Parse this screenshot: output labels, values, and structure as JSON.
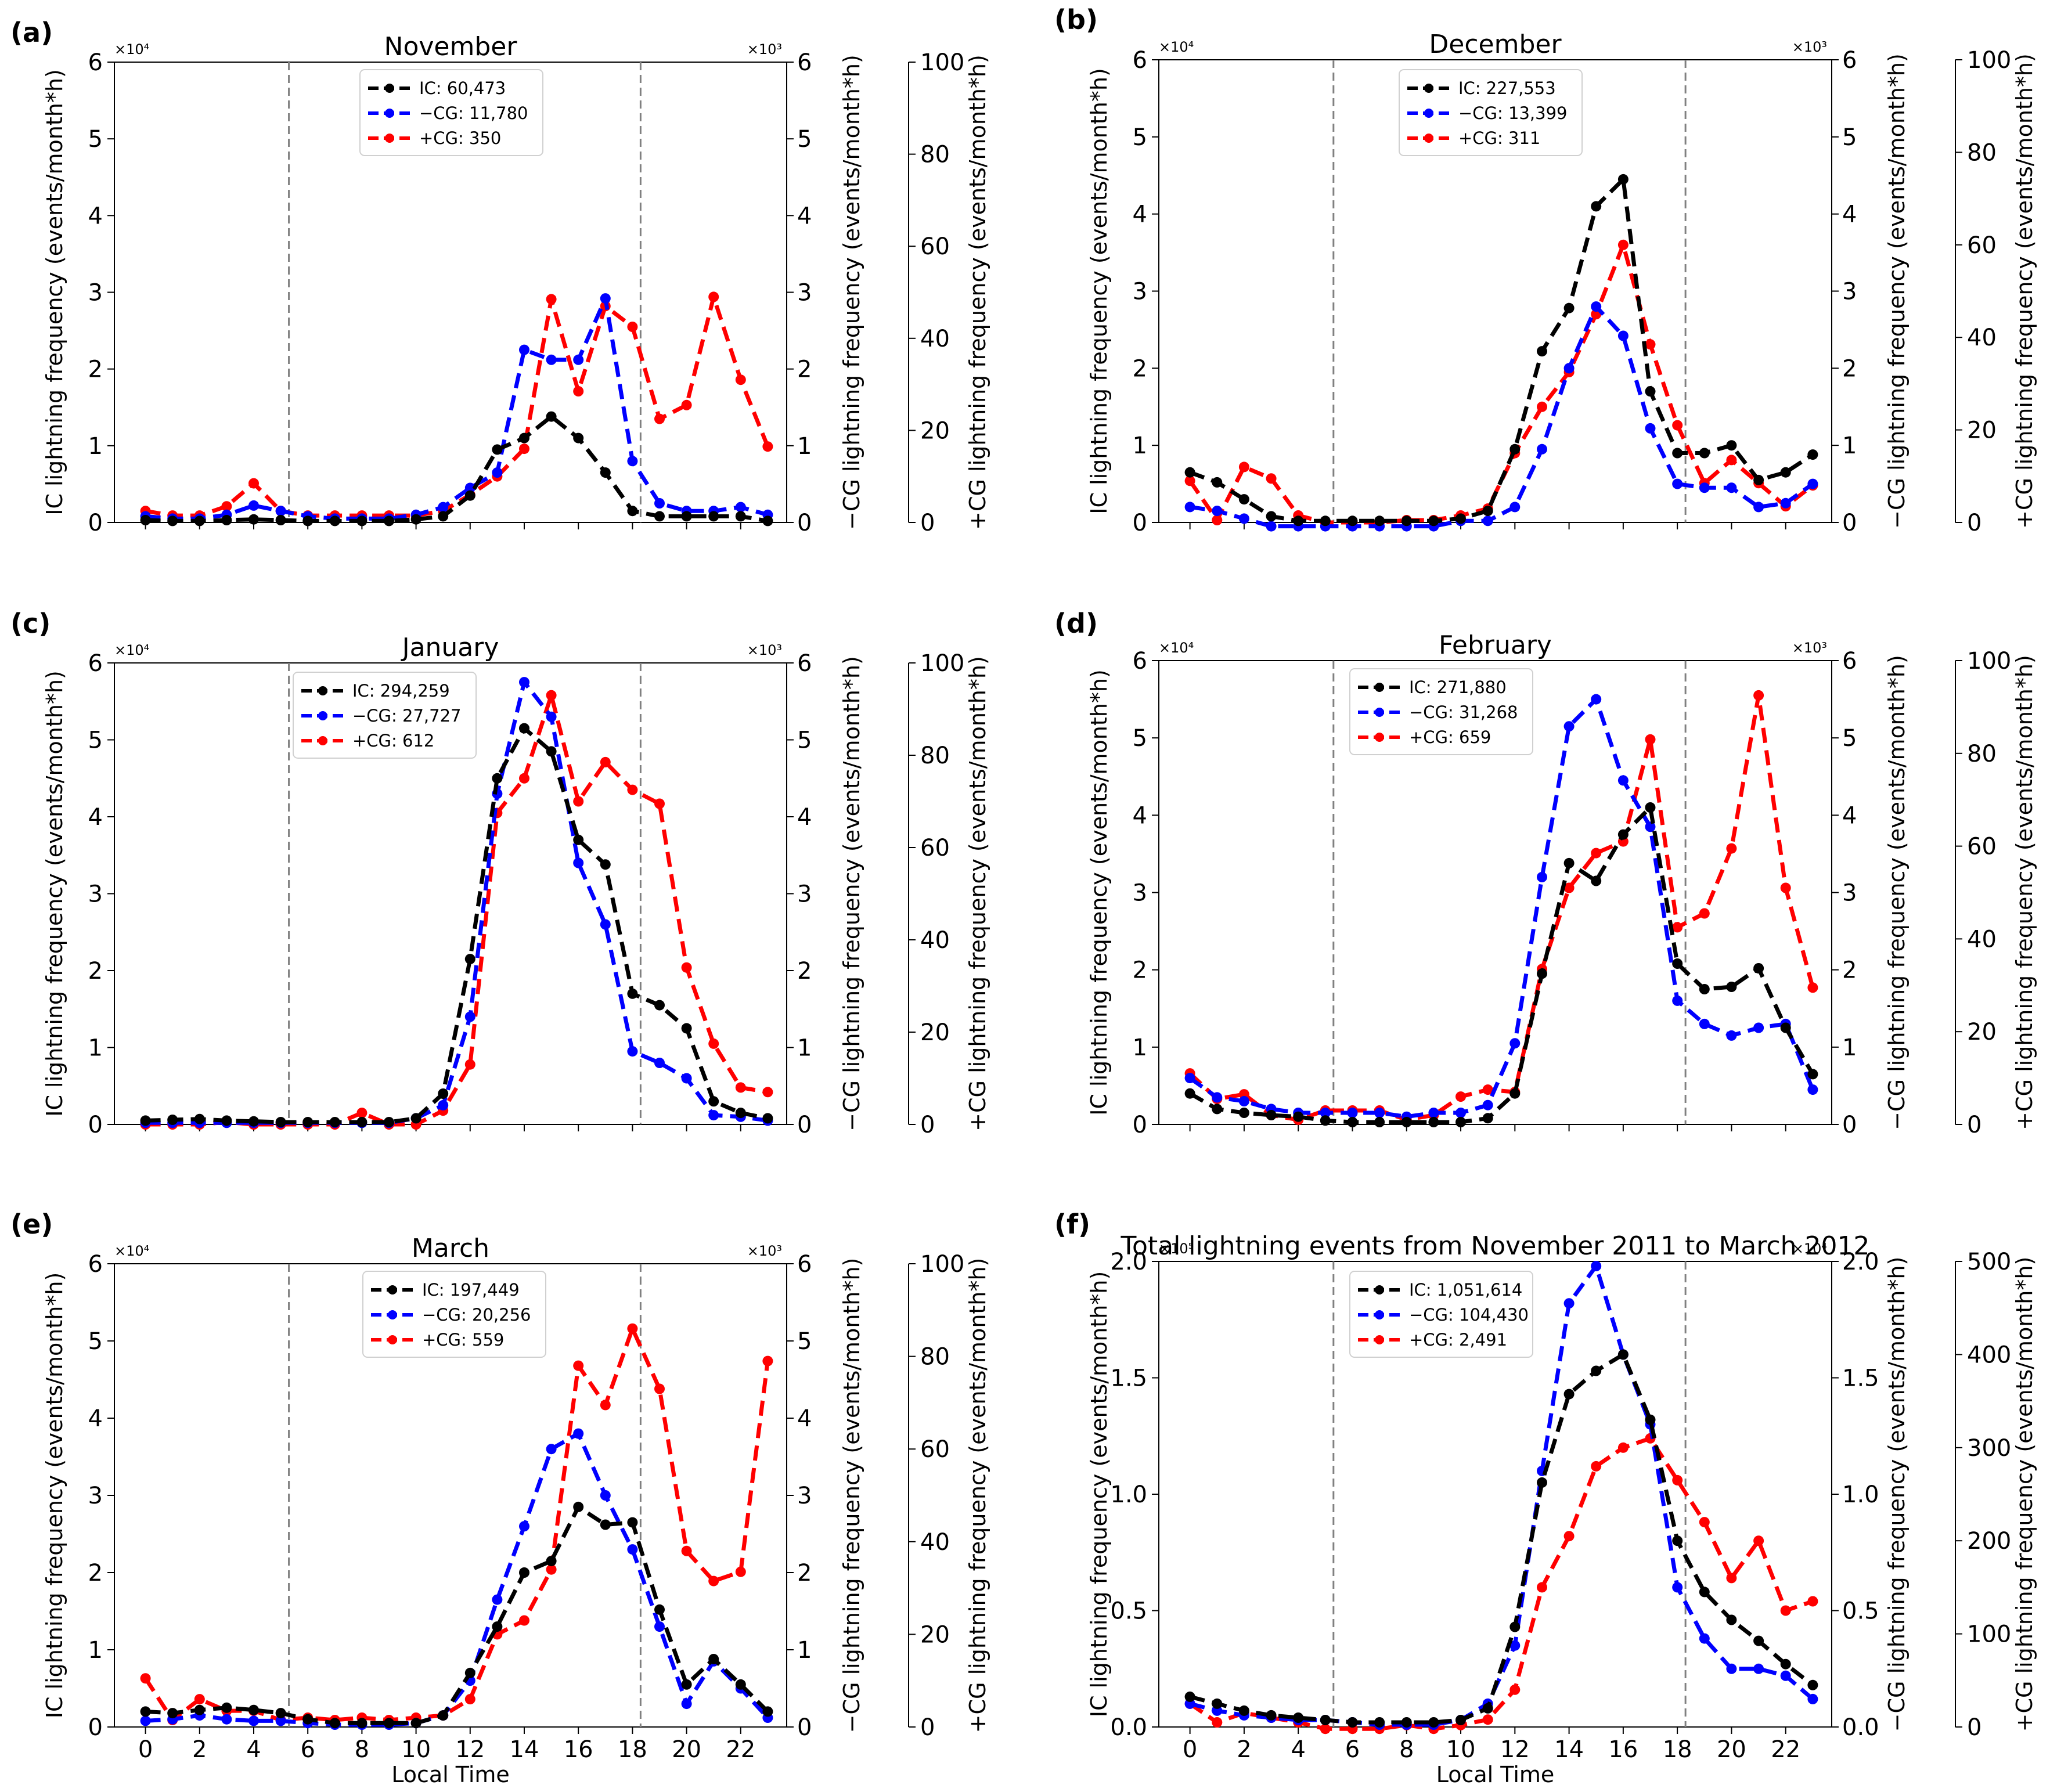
{
  "figure": {
    "x_label": "Local Time",
    "y_label_left": "IC lightning frequency (events/month*h)",
    "y_label_mid": "−CG lightning frequency (events/month*h)",
    "y_label_right": "+CG lightning frequency (events/month*h)",
    "colors": {
      "ic": "#000000",
      "neg_cg": "#0000ff",
      "pos_cg": "#ff0000",
      "vline": "#808080"
    },
    "vertical_lines_hours": [
      5.3,
      18.3
    ]
  },
  "chart_data": [
    {
      "type": "line",
      "panel": "(a)",
      "title": "November",
      "categories": [
        0,
        1,
        2,
        3,
        4,
        5,
        6,
        7,
        8,
        9,
        10,
        11,
        12,
        13,
        14,
        15,
        16,
        17,
        18,
        19,
        20,
        21,
        22,
        23
      ],
      "ylim_left": [
        0,
        6
      ],
      "yticks_left": [
        "0",
        "1",
        "2",
        "3",
        "4",
        "5",
        "6"
      ],
      "exp_left": "×10⁴",
      "ylim_mid": [
        0,
        6
      ],
      "yticks_mid": [
        "0",
        "1",
        "2",
        "3",
        "4",
        "5",
        "6"
      ],
      "exp_mid": "×10³",
      "ylim_right": [
        0,
        100
      ],
      "yticks_right": [
        "0",
        "20",
        "40",
        "60",
        "80",
        "100"
      ],
      "vlines": [
        5.3,
        18.3
      ],
      "series": [
        {
          "name": "IC: 60,473",
          "axis": "left",
          "color": "#000000",
          "values": [
            0.03,
            0.02,
            0.02,
            0.03,
            0.04,
            0.03,
            0.02,
            0.02,
            0.02,
            0.02,
            0.04,
            0.08,
            0.35,
            0.95,
            1.1,
            1.38,
            1.1,
            0.65,
            0.15,
            0.08,
            0.08,
            0.08,
            0.08,
            0.02
          ]
        },
        {
          "name": "−CG: 11,780",
          "axis": "mid",
          "color": "#0000ff",
          "values": [
            0.08,
            0.05,
            0.05,
            0.1,
            0.22,
            0.15,
            0.08,
            0.05,
            0.05,
            0.05,
            0.1,
            0.2,
            0.45,
            0.65,
            2.25,
            2.12,
            2.12,
            2.92,
            0.8,
            0.25,
            0.15,
            0.15,
            0.2,
            0.1
          ]
        },
        {
          "name": "+CG: 350",
          "axis": "right",
          "color": "#ff0000",
          "values": [
            2.5,
            1.5,
            1.5,
            3.5,
            8.5,
            2.5,
            1.5,
            1.5,
            1.5,
            1.5,
            1.5,
            2.5,
            6,
            10,
            16,
            48.5,
            28.5,
            47,
            42.5,
            22.5,
            25.5,
            49,
            31,
            16.5
          ]
        }
      ]
    },
    {
      "type": "line",
      "panel": "(b)",
      "title": "December",
      "categories": [
        0,
        1,
        2,
        3,
        4,
        5,
        6,
        7,
        8,
        9,
        10,
        11,
        12,
        13,
        14,
        15,
        16,
        17,
        18,
        19,
        20,
        21,
        22,
        23
      ],
      "ylim_left": [
        0,
        6
      ],
      "yticks_left": [
        "0",
        "1",
        "2",
        "3",
        "4",
        "5",
        "6"
      ],
      "exp_left": "×10⁴",
      "ylim_mid": [
        0,
        6
      ],
      "yticks_mid": [
        "0",
        "1",
        "2",
        "3",
        "4",
        "5",
        "6"
      ],
      "exp_mid": "×10³",
      "ylim_right": [
        0,
        100
      ],
      "yticks_right": [
        "0",
        "20",
        "40",
        "60",
        "80",
        "100"
      ],
      "vlines": [
        5.3,
        18.3
      ],
      "series": [
        {
          "name": "IC: 227,553",
          "axis": "left",
          "color": "#000000",
          "values": [
            0.65,
            0.52,
            0.3,
            0.08,
            0.02,
            0.02,
            0.02,
            0.02,
            0.02,
            0.02,
            0.05,
            0.15,
            0.95,
            2.22,
            2.78,
            4.1,
            4.45,
            1.7,
            0.9,
            0.9,
            1.0,
            0.55,
            0.65,
            0.88
          ]
        },
        {
          "name": "−CG: 13,399",
          "axis": "mid",
          "color": "#0000ff",
          "values": [
            0.2,
            0.15,
            0.05,
            -0.05,
            -0.05,
            -0.05,
            -0.05,
            -0.05,
            -0.05,
            -0.05,
            0.02,
            0.02,
            0.2,
            0.95,
            2.0,
            2.8,
            2.42,
            1.22,
            0.5,
            0.45,
            0.45,
            0.2,
            0.25,
            0.5
          ]
        },
        {
          "name": "+CG: 311",
          "axis": "right",
          "color": "#ff0000",
          "values": [
            9,
            0.5,
            12,
            9.5,
            1.5,
            0,
            0,
            0,
            0.5,
            0.5,
            1.5,
            3,
            15,
            25,
            32.5,
            45,
            60,
            38.5,
            21,
            8.5,
            13.5,
            8.5,
            3.5,
            8
          ]
        }
      ]
    },
    {
      "type": "line",
      "panel": "(c)",
      "title": "January",
      "categories": [
        0,
        1,
        2,
        3,
        4,
        5,
        6,
        7,
        8,
        9,
        10,
        11,
        12,
        13,
        14,
        15,
        16,
        17,
        18,
        19,
        20,
        21,
        22,
        23
      ],
      "ylim_left": [
        0,
        6
      ],
      "yticks_left": [
        "0",
        "1",
        "2",
        "3",
        "4",
        "5",
        "6"
      ],
      "exp_left": "×10⁴",
      "ylim_mid": [
        0,
        6
      ],
      "yticks_mid": [
        "0",
        "1",
        "2",
        "3",
        "4",
        "5",
        "6"
      ],
      "exp_mid": "×10³",
      "ylim_right": [
        0,
        100
      ],
      "yticks_right": [
        "0",
        "20",
        "40",
        "60",
        "80",
        "100"
      ],
      "vlines": [
        5.3,
        18.3
      ],
      "series": [
        {
          "name": "IC: 294,259",
          "axis": "left",
          "color": "#000000",
          "values": [
            0.05,
            0.06,
            0.07,
            0.05,
            0.04,
            0.03,
            0.03,
            0.03,
            0.03,
            0.03,
            0.08,
            0.4,
            2.15,
            4.5,
            5.15,
            4.85,
            3.7,
            3.38,
            1.7,
            1.55,
            1.25,
            0.3,
            0.15,
            0.08
          ]
        },
        {
          "name": "−CG: 27,727",
          "axis": "mid",
          "color": "#0000ff",
          "values": [
            0.02,
            0.02,
            0.02,
            0.02,
            0.02,
            0.02,
            0.02,
            0.02,
            0.02,
            0.02,
            0.08,
            0.25,
            1.4,
            4.3,
            5.75,
            5.3,
            3.4,
            2.6,
            0.95,
            0.8,
            0.6,
            0.12,
            0.1,
            0.05
          ]
        },
        {
          "name": "+CG: 612",
          "axis": "right",
          "color": "#ff0000",
          "values": [
            0,
            0,
            0,
            0.5,
            0,
            0,
            0,
            0,
            2.5,
            0,
            0,
            3,
            13,
            67.5,
            75,
            93,
            70,
            78.5,
            72.5,
            69.5,
            34,
            17.5,
            8,
            7
          ]
        }
      ]
    },
    {
      "type": "line",
      "panel": "(d)",
      "title": "February",
      "categories": [
        0,
        1,
        2,
        3,
        4,
        5,
        6,
        7,
        8,
        9,
        10,
        11,
        12,
        13,
        14,
        15,
        16,
        17,
        18,
        19,
        20,
        21,
        22,
        23
      ],
      "ylim_left": [
        0,
        6
      ],
      "yticks_left": [
        "0",
        "1",
        "2",
        "3",
        "4",
        "5",
        "6"
      ],
      "exp_left": "×10⁴",
      "ylim_mid": [
        0,
        6
      ],
      "yticks_mid": [
        "0",
        "1",
        "2",
        "3",
        "4",
        "5",
        "6"
      ],
      "exp_mid": "×10³",
      "ylim_right": [
        0,
        100
      ],
      "yticks_right": [
        "0",
        "20",
        "40",
        "60",
        "80",
        "100"
      ],
      "vlines": [
        5.3,
        18.3
      ],
      "series": [
        {
          "name": "IC: 271,880",
          "axis": "left",
          "color": "#000000",
          "values": [
            0.4,
            0.2,
            0.15,
            0.12,
            0.1,
            0.05,
            0.03,
            0.03,
            0.03,
            0.03,
            0.03,
            0.08,
            0.4,
            1.95,
            3.38,
            3.15,
            3.75,
            4.1,
            2.08,
            1.75,
            1.78,
            2.02,
            1.25,
            0.65
          ]
        },
        {
          "name": "−CG: 31,268",
          "axis": "mid",
          "color": "#0000ff",
          "values": [
            0.6,
            0.35,
            0.3,
            0.2,
            0.15,
            0.15,
            0.15,
            0.15,
            0.1,
            0.15,
            0.15,
            0.25,
            1.05,
            3.2,
            5.15,
            5.5,
            4.45,
            3.85,
            1.6,
            1.3,
            1.15,
            1.25,
            1.3,
            0.45
          ]
        },
        {
          "name": "+CG: 659",
          "axis": "right",
          "color": "#ff0000",
          "values": [
            11,
            5.5,
            6.5,
            2,
            1,
            3,
            3,
            3,
            1,
            2,
            6,
            7.5,
            7,
            33.5,
            51,
            58.5,
            61,
            83,
            42.5,
            45.5,
            59.5,
            92.5,
            51,
            29.5
          ]
        }
      ]
    },
    {
      "type": "line",
      "panel": "(e)",
      "title": "March",
      "categories": [
        0,
        1,
        2,
        3,
        4,
        5,
        6,
        7,
        8,
        9,
        10,
        11,
        12,
        13,
        14,
        15,
        16,
        17,
        18,
        19,
        20,
        21,
        22,
        23
      ],
      "ylim_left": [
        0,
        6
      ],
      "yticks_left": [
        "0",
        "1",
        "2",
        "3",
        "4",
        "5",
        "6"
      ],
      "exp_left": "×10⁴",
      "ylim_mid": [
        0,
        6
      ],
      "yticks_mid": [
        "0",
        "1",
        "2",
        "3",
        "4",
        "5",
        "6"
      ],
      "exp_mid": "×10³",
      "ylim_right": [
        0,
        100
      ],
      "yticks_right": [
        "0",
        "20",
        "40",
        "60",
        "80",
        "100"
      ],
      "vlines": [
        5.3,
        18.3
      ],
      "xticks": [
        "0",
        "2",
        "4",
        "6",
        "8",
        "10",
        "12",
        "14",
        "16",
        "18",
        "20",
        "22"
      ],
      "xlabel": "Local Time",
      "series": [
        {
          "name": "IC: 197,449",
          "axis": "left",
          "color": "#000000",
          "values": [
            0.2,
            0.18,
            0.22,
            0.25,
            0.22,
            0.18,
            0.1,
            0.05,
            0.05,
            0.05,
            0.05,
            0.15,
            0.7,
            1.3,
            2.0,
            2.15,
            2.85,
            2.62,
            2.65,
            1.52,
            0.55,
            0.88,
            0.55,
            0.2
          ]
        },
        {
          "name": "−CG: 20,256",
          "axis": "mid",
          "color": "#0000ff",
          "values": [
            0.08,
            0.1,
            0.15,
            0.1,
            0.08,
            0.08,
            0.05,
            0.03,
            0.03,
            0.03,
            0.05,
            0.15,
            0.6,
            1.65,
            2.6,
            3.6,
            3.8,
            3.0,
            2.3,
            1.3,
            0.3,
            0.85,
            0.5,
            0.12
          ]
        },
        {
          "name": "+CG: 559",
          "axis": "right",
          "color": "#ff0000",
          "values": [
            10.5,
            1.5,
            6,
            3.5,
            3.5,
            1.5,
            2,
            1.5,
            2,
            1.5,
            2,
            2.5,
            6,
            20,
            23,
            34,
            78,
            69.5,
            86,
            73,
            38,
            31.5,
            33.5,
            79
          ]
        }
      ]
    },
    {
      "type": "line",
      "panel": "(f)",
      "title": "Total lightning events from November 2011 to March 2012",
      "categories": [
        0,
        1,
        2,
        3,
        4,
        5,
        6,
        7,
        8,
        9,
        10,
        11,
        12,
        13,
        14,
        15,
        16,
        17,
        18,
        19,
        20,
        21,
        22,
        23
      ],
      "ylim_left": [
        0,
        2.0
      ],
      "yticks_left": [
        "0.0",
        "0.5",
        "1.0",
        "1.5",
        "2.0"
      ],
      "exp_left": "×10⁵",
      "ylim_mid": [
        0,
        2.0
      ],
      "yticks_mid": [
        "0.0",
        "0.5",
        "1.0",
        "1.5",
        "2.0"
      ],
      "exp_mid": "×10⁴",
      "ylim_right": [
        0,
        500
      ],
      "yticks_right": [
        "0",
        "100",
        "200",
        "300",
        "400",
        "500"
      ],
      "vlines": [
        5.3,
        18.3
      ],
      "xticks": [
        "0",
        "2",
        "4",
        "6",
        "8",
        "10",
        "12",
        "14",
        "16",
        "18",
        "20",
        "22"
      ],
      "xlabel": "Local Time",
      "series": [
        {
          "name": "IC: 1,051,614",
          "axis": "left",
          "color": "#000000",
          "values": [
            0.13,
            0.1,
            0.07,
            0.05,
            0.04,
            0.03,
            0.02,
            0.02,
            0.02,
            0.02,
            0.03,
            0.08,
            0.43,
            1.05,
            1.43,
            1.53,
            1.6,
            1.32,
            0.8,
            0.58,
            0.46,
            0.37,
            0.27,
            0.18
          ]
        },
        {
          "name": "−CG: 104,430",
          "axis": "mid",
          "color": "#0000ff",
          "values": [
            0.1,
            0.07,
            0.05,
            0.04,
            0.03,
            0.03,
            0.02,
            0.01,
            0.01,
            0.01,
            0.03,
            0.1,
            0.35,
            1.1,
            1.82,
            1.98,
            1.6,
            1.3,
            0.6,
            0.38,
            0.25,
            0.25,
            0.22,
            0.12
          ]
        },
        {
          "name": "+CG: 2,491",
          "axis": "right",
          "color": "#ff0000",
          "values": [
            25,
            5,
            15,
            10,
            5,
            -2,
            -2,
            -2,
            2,
            -2,
            2,
            8,
            40,
            150,
            205,
            280,
            300,
            310,
            265,
            220,
            160,
            200,
            125,
            135
          ]
        }
      ]
    }
  ]
}
